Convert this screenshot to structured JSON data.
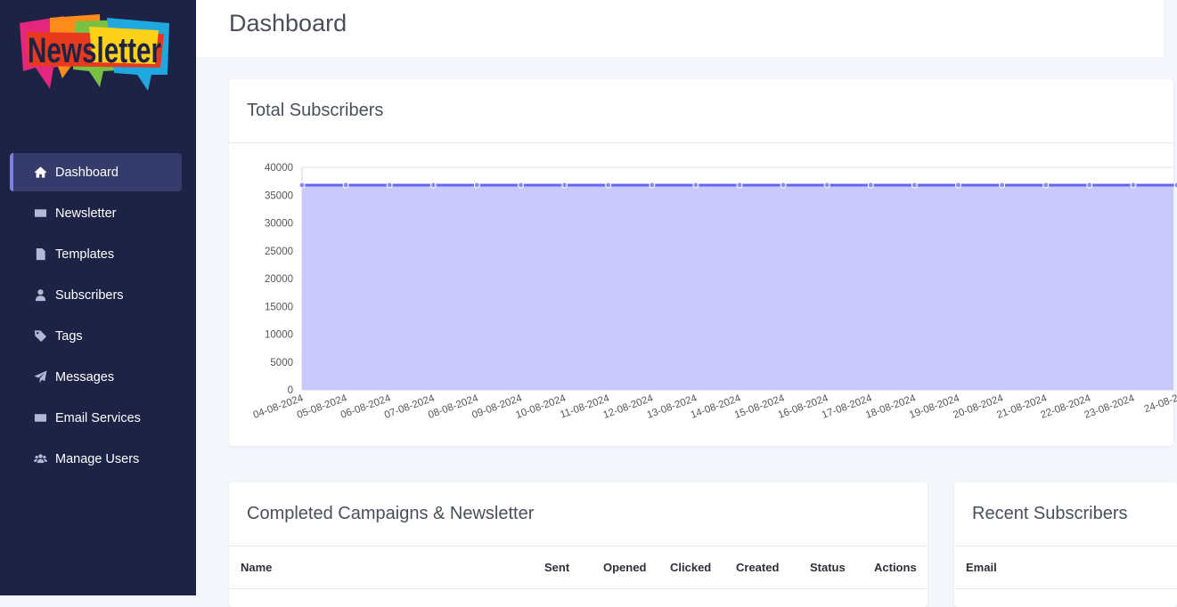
{
  "app": {
    "logo_text": "Newsletter"
  },
  "sidebar": {
    "items": [
      {
        "label": "Dashboard",
        "icon": "home-icon",
        "active": true
      },
      {
        "label": "Newsletter",
        "icon": "envelope-icon"
      },
      {
        "label": "Templates",
        "icon": "file-icon"
      },
      {
        "label": "Subscribers",
        "icon": "user-icon"
      },
      {
        "label": "Tags",
        "icon": "tag-icon"
      },
      {
        "label": "Messages",
        "icon": "paper-plane-icon"
      },
      {
        "label": "Email Services",
        "icon": "envelope-icon"
      },
      {
        "label": "Manage Users",
        "icon": "users-icon"
      }
    ]
  },
  "header": {
    "title": "Dashboard"
  },
  "chart_card": {
    "title": "Total Subscribers"
  },
  "chart_data": {
    "type": "area",
    "title": "Total Subscribers",
    "x": [
      "04-08-2024",
      "05-08-2024",
      "06-08-2024",
      "07-08-2024",
      "08-08-2024",
      "09-08-2024",
      "10-08-2024",
      "11-08-2024",
      "12-08-2024",
      "13-08-2024",
      "14-08-2024",
      "15-08-2024",
      "16-08-2024",
      "17-08-2024",
      "18-08-2024",
      "19-08-2024",
      "20-08-2024",
      "21-08-2024",
      "22-08-2024",
      "23-08-2024",
      "24-08-2"
    ],
    "series": [
      {
        "values": [
          36800,
          36800,
          36800,
          36800,
          36800,
          36800,
          36800,
          36800,
          36800,
          36800,
          36800,
          36800,
          36800,
          36800,
          36800,
          36800,
          36800,
          36800,
          36800,
          36800,
          36800
        ]
      }
    ],
    "yticks": [
      0,
      5000,
      10000,
      15000,
      20000,
      25000,
      30000,
      35000,
      40000
    ],
    "ylim": [
      0,
      40000
    ],
    "grid": true,
    "colors": {
      "line": "#6366f1",
      "fill": "#c9c9fb",
      "point": "#8b8fe8"
    }
  },
  "campaigns_card": {
    "title": "Completed Campaigns & Newsletter",
    "columns": [
      "Name",
      "Sent",
      "Opened",
      "Clicked",
      "Created",
      "Status",
      "Actions"
    ]
  },
  "recent_card": {
    "title": "Recent Subscribers",
    "columns": [
      "Email"
    ]
  },
  "colors": {
    "sidebar_bg": "#1d2345",
    "sidebar_active": "#353c6b",
    "accent": "#7b7fe0",
    "page_bg": "#f3f6fa"
  }
}
